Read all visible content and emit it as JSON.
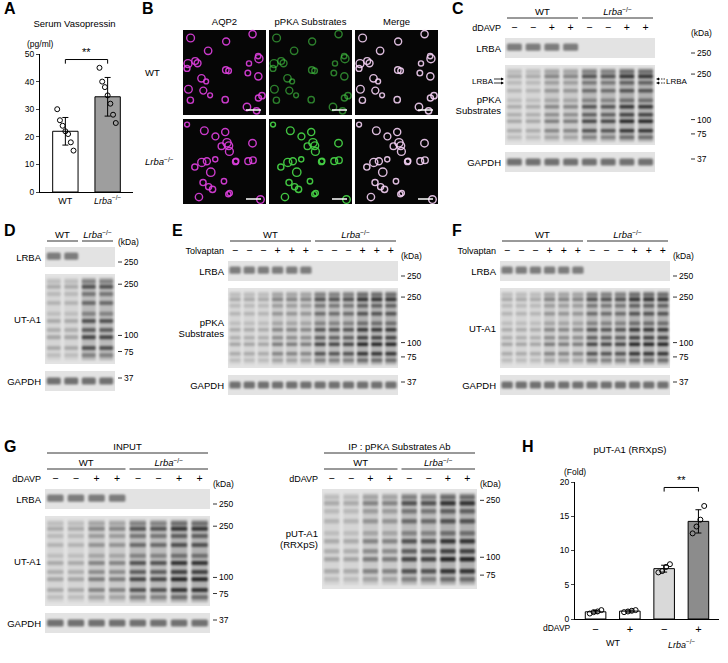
{
  "panel_letters": [
    "A",
    "B",
    "C",
    "D",
    "E",
    "F",
    "G",
    "H"
  ],
  "genotype_superscript": "−/−",
  "unit_label": "(kDa)",
  "chart_data": [
    {
      "type": "bar",
      "title": "Serum Vasopressin",
      "y_label": "(pg/ml)",
      "categories": [
        "WT",
        "Lrba−/−"
      ],
      "values": [
        22,
        34.5
      ],
      "error": [
        5,
        7
      ],
      "points": [
        [
          30,
          26,
          24,
          22,
          21,
          18,
          15
        ],
        [
          45,
          40,
          38,
          35,
          32,
          28,
          25
        ]
      ],
      "colors": [
        "#ffffff",
        "#9e9e9e"
      ],
      "ylim": [
        0,
        50
      ],
      "yticks": [
        0,
        10,
        20,
        30,
        40,
        50
      ],
      "significance": [
        {
          "text": "**",
          "between": [
            0,
            1
          ]
        }
      ]
    },
    {
      "type": "bar",
      "title": "pUT-A1 (RRXpS)",
      "y_label": "(Fold)",
      "x_label": "dDAVP",
      "categories": [
        "−",
        "+",
        "−",
        "+"
      ],
      "values": [
        1.05,
        1.15,
        7.35,
        14.25
      ],
      "error": [
        0.2,
        0.15,
        0.5,
        1.7
      ],
      "points": [
        [
          0.8,
          1.0,
          1.1,
          1.3
        ],
        [
          1.0,
          1.1,
          1.2,
          1.3
        ],
        [
          6.8,
          7.0,
          7.6,
          8.0
        ],
        [
          12.5,
          13.5,
          14.5,
          16.5
        ]
      ],
      "colors": [
        "#ffffff",
        "#ffffff",
        "#d9d9d9",
        "#8c8c8c"
      ],
      "groups": [
        {
          "name": "WT",
          "members": [
            0,
            1
          ]
        },
        {
          "name": "Lrba−/−",
          "members": [
            2,
            3
          ]
        }
      ],
      "ylim": [
        0,
        20
      ],
      "yticks": [
        0,
        5,
        10,
        15,
        20
      ],
      "significance": [
        {
          "text": "**",
          "between": [
            2,
            3
          ]
        }
      ]
    }
  ],
  "micrographs": {
    "columns": [
      "AQP2",
      "pPKA Substrates",
      "Merge"
    ],
    "rows": [
      "WT",
      "Lrba−/−"
    ]
  },
  "blots": [
    {
      "groups": [
        "WT",
        "Lrba−/−"
      ],
      "treatment": "dDAVP",
      "lanes": [
        [
          "−",
          "−",
          "+",
          "+"
        ],
        [
          "−",
          "−",
          "+",
          "+"
        ]
      ],
      "strips": [
        {
          "label": "LRBA",
          "markers": [
            250
          ]
        },
        {
          "label": "pPKA Substrates",
          "markers": [
            250,
            100,
            75
          ],
          "arrow_label": "LRBA"
        },
        {
          "label": "GAPDH",
          "markers": [
            37
          ]
        }
      ]
    },
    {
      "groups": [
        "WT",
        "Lrba−/−"
      ],
      "lanes_per_group": 2,
      "strips": [
        {
          "label": "LRBA",
          "markers": [
            250
          ]
        },
        {
          "label": "UT-A1",
          "markers": [
            250,
            100,
            75
          ]
        },
        {
          "label": "GAPDH",
          "markers": [
            37
          ]
        }
      ]
    },
    {
      "groups": [
        "WT",
        "Lrba−/−"
      ],
      "treatment": "Tolvaptan",
      "lanes": [
        [
          "−",
          "−",
          "−",
          "+",
          "+",
          "+"
        ],
        [
          "−",
          "−",
          "−",
          "+",
          "+",
          "+"
        ]
      ],
      "strips": [
        {
          "label": "LRBA",
          "markers": [
            250
          ]
        },
        {
          "label": "pPKA Substrates",
          "markers": [
            250,
            100,
            75
          ]
        },
        {
          "label": "GAPDH",
          "markers": [
            37
          ]
        }
      ]
    },
    {
      "groups": [
        "WT",
        "Lrba−/−"
      ],
      "treatment": "Tolvaptan",
      "lanes": [
        [
          "−",
          "−",
          "−",
          "+",
          "+",
          "+"
        ],
        [
          "−",
          "−",
          "−",
          "+",
          "+",
          "+"
        ]
      ],
      "strips": [
        {
          "label": "LRBA",
          "markers": [
            250
          ]
        },
        {
          "label": "UT-A1",
          "markers": [
            250,
            100,
            75
          ]
        },
        {
          "label": "GAPDH",
          "markers": [
            37
          ]
        }
      ]
    },
    {
      "header": "INPUT",
      "groups": [
        "WT",
        "Lrba−/−"
      ],
      "treatment": "dDAVP",
      "lanes": [
        [
          "−",
          "−",
          "+",
          "+"
        ],
        [
          "−",
          "−",
          "+",
          "+"
        ]
      ],
      "strips": [
        {
          "label": "LRBA",
          "markers": [
            250
          ]
        },
        {
          "label": "UT-A1",
          "markers": [
            250,
            100,
            75
          ]
        },
        {
          "label": "GAPDH",
          "markers": [
            37
          ]
        }
      ]
    },
    {
      "header": "IP : pPKA Substrates Ab",
      "groups": [
        "WT",
        "Lrba−/−"
      ],
      "treatment": "dDAVP",
      "lanes": [
        [
          "−",
          "−",
          "+",
          "+"
        ],
        [
          "−",
          "−",
          "+",
          "+"
        ]
      ],
      "strips": [
        {
          "label": "pUT-A1 (RRXpS)",
          "markers": [
            250,
            100,
            75
          ]
        }
      ]
    }
  ]
}
